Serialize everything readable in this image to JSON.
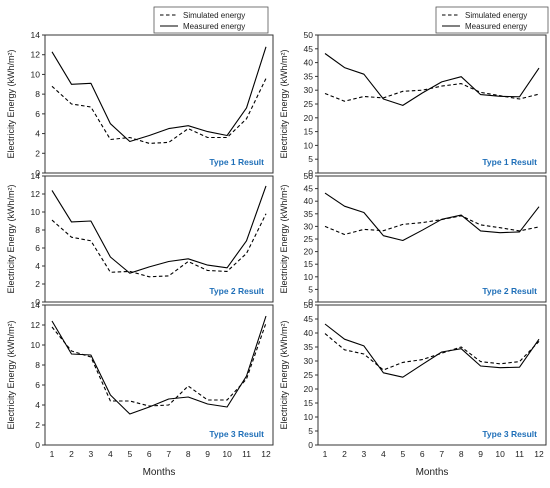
{
  "colors": {
    "result_label": "#1f6fb8",
    "line": "#000000",
    "frame": "#333333"
  },
  "legend": {
    "simulated": "Simulated energy",
    "measured": "Measured energy"
  },
  "chart_data": [
    {
      "type": "line",
      "result_label": "Type 1 Result",
      "ylabel": "Electricity Energy (kWh/m²)",
      "xlabel": "",
      "x": [
        1,
        2,
        3,
        4,
        5,
        6,
        7,
        8,
        9,
        10,
        11,
        12
      ],
      "ylim": [
        0,
        14
      ],
      "yticks": [
        0,
        2,
        4,
        6,
        8,
        10,
        12,
        14
      ],
      "xticks": [],
      "series": [
        {
          "name": "Simulated energy",
          "style": "dashed",
          "values": [
            8.8,
            7.0,
            6.7,
            3.4,
            3.6,
            3.0,
            3.1,
            4.5,
            3.6,
            3.6,
            5.5,
            9.6
          ]
        },
        {
          "name": "Measured energy",
          "style": "solid",
          "values": [
            12.3,
            9.0,
            9.1,
            5.0,
            3.2,
            3.8,
            4.5,
            4.8,
            4.2,
            3.8,
            6.6,
            12.8
          ]
        }
      ]
    },
    {
      "type": "line",
      "result_label": "Type 1 Result",
      "ylabel": "Electricity Energy (kWh/m²)",
      "xlabel": "",
      "x": [
        1,
        2,
        3,
        4,
        5,
        6,
        7,
        8,
        9,
        10,
        11,
        12
      ],
      "ylim": [
        0,
        50
      ],
      "yticks": [
        0,
        5,
        10,
        15,
        20,
        25,
        30,
        35,
        40,
        45,
        50
      ],
      "xticks": [],
      "series": [
        {
          "name": "Simulated energy",
          "style": "dashed",
          "values": [
            28.8,
            26.0,
            27.7,
            27.2,
            29.6,
            30.0,
            31.5,
            32.4,
            29.2,
            28.0,
            26.8,
            28.6
          ]
        },
        {
          "name": "Measured energy",
          "style": "solid",
          "values": [
            43.3,
            38.2,
            35.8,
            26.8,
            24.5,
            29.0,
            33.0,
            34.9,
            28.4,
            27.8,
            27.6,
            38.0
          ]
        }
      ]
    },
    {
      "type": "line",
      "result_label": "Type 2 Result",
      "ylabel": "Electricity Energy (kWh/m²)",
      "xlabel": "",
      "x": [
        1,
        2,
        3,
        4,
        5,
        6,
        7,
        8,
        9,
        10,
        11,
        12
      ],
      "ylim": [
        0,
        14
      ],
      "yticks": [
        0,
        2,
        4,
        6,
        8,
        10,
        12,
        14
      ],
      "xticks": [],
      "series": [
        {
          "name": "Simulated energy",
          "style": "dashed",
          "values": [
            9.1,
            7.2,
            6.8,
            3.3,
            3.4,
            2.8,
            2.9,
            4.5,
            3.5,
            3.4,
            5.4,
            9.8
          ]
        },
        {
          "name": "Measured energy",
          "style": "solid",
          "values": [
            12.4,
            8.9,
            9.0,
            5.0,
            3.2,
            3.9,
            4.5,
            4.8,
            4.1,
            3.8,
            6.8,
            12.9
          ]
        }
      ]
    },
    {
      "type": "line",
      "result_label": "Type 2 Result",
      "ylabel": "Electricity Energy (kWh/m²)",
      "xlabel": "",
      "x": [
        1,
        2,
        3,
        4,
        5,
        6,
        7,
        8,
        9,
        10,
        11,
        12
      ],
      "ylim": [
        0,
        50
      ],
      "yticks": [
        0,
        5,
        10,
        15,
        20,
        25,
        30,
        35,
        40,
        45,
        50
      ],
      "xticks": [],
      "series": [
        {
          "name": "Simulated energy",
          "style": "dashed",
          "values": [
            30.0,
            26.8,
            28.8,
            28.3,
            30.8,
            31.5,
            32.7,
            34.2,
            30.6,
            29.5,
            28.2,
            29.8
          ]
        },
        {
          "name": "Measured energy",
          "style": "solid",
          "values": [
            43.2,
            38.0,
            35.5,
            26.3,
            24.4,
            28.5,
            32.8,
            34.5,
            28.2,
            27.5,
            27.8,
            37.8
          ]
        }
      ]
    },
    {
      "type": "line",
      "result_label": "Type 3 Result",
      "ylabel": "Electricity Energy (kWh/m²)",
      "xlabel": "Months",
      "x": [
        1,
        2,
        3,
        4,
        5,
        6,
        7,
        8,
        9,
        10,
        11,
        12
      ],
      "ylim": [
        0,
        14
      ],
      "yticks": [
        0,
        2,
        4,
        6,
        8,
        10,
        12,
        14
      ],
      "xticks": [
        "1",
        "2",
        "3",
        "4",
        "5",
        "6",
        "7",
        "8",
        "9",
        "10",
        "11",
        "12"
      ],
      "series": [
        {
          "name": "Simulated energy",
          "style": "dashed",
          "values": [
            11.8,
            9.4,
            8.8,
            4.4,
            4.4,
            3.9,
            4.0,
            5.9,
            4.5,
            4.5,
            6.6,
            12.2
          ]
        },
        {
          "name": "Measured energy",
          "style": "solid",
          "values": [
            12.4,
            9.1,
            9.0,
            5.0,
            3.1,
            3.8,
            4.6,
            4.8,
            4.1,
            3.8,
            6.9,
            12.9
          ]
        }
      ]
    },
    {
      "type": "line",
      "result_label": "Type 3 Result",
      "ylabel": "Electricity Energy (kWh/m²)",
      "xlabel": "Months",
      "x": [
        1,
        2,
        3,
        4,
        5,
        6,
        7,
        8,
        9,
        10,
        11,
        12
      ],
      "ylim": [
        0,
        50
      ],
      "yticks": [
        0,
        5,
        10,
        15,
        20,
        25,
        30,
        35,
        40,
        45,
        50
      ],
      "xticks": [
        "1",
        "2",
        "3",
        "4",
        "5",
        "6",
        "7",
        "8",
        "9",
        "10",
        "11",
        "12"
      ],
      "series": [
        {
          "name": "Simulated energy",
          "style": "dashed",
          "values": [
            39.8,
            34.0,
            32.5,
            26.8,
            29.5,
            30.5,
            32.8,
            35.0,
            29.8,
            29.0,
            29.8,
            37.0
          ]
        },
        {
          "name": "Measured energy",
          "style": "solid",
          "values": [
            43.2,
            37.8,
            35.4,
            25.8,
            24.2,
            28.8,
            33.2,
            34.4,
            28.2,
            27.6,
            27.8,
            37.8
          ]
        }
      ]
    }
  ]
}
